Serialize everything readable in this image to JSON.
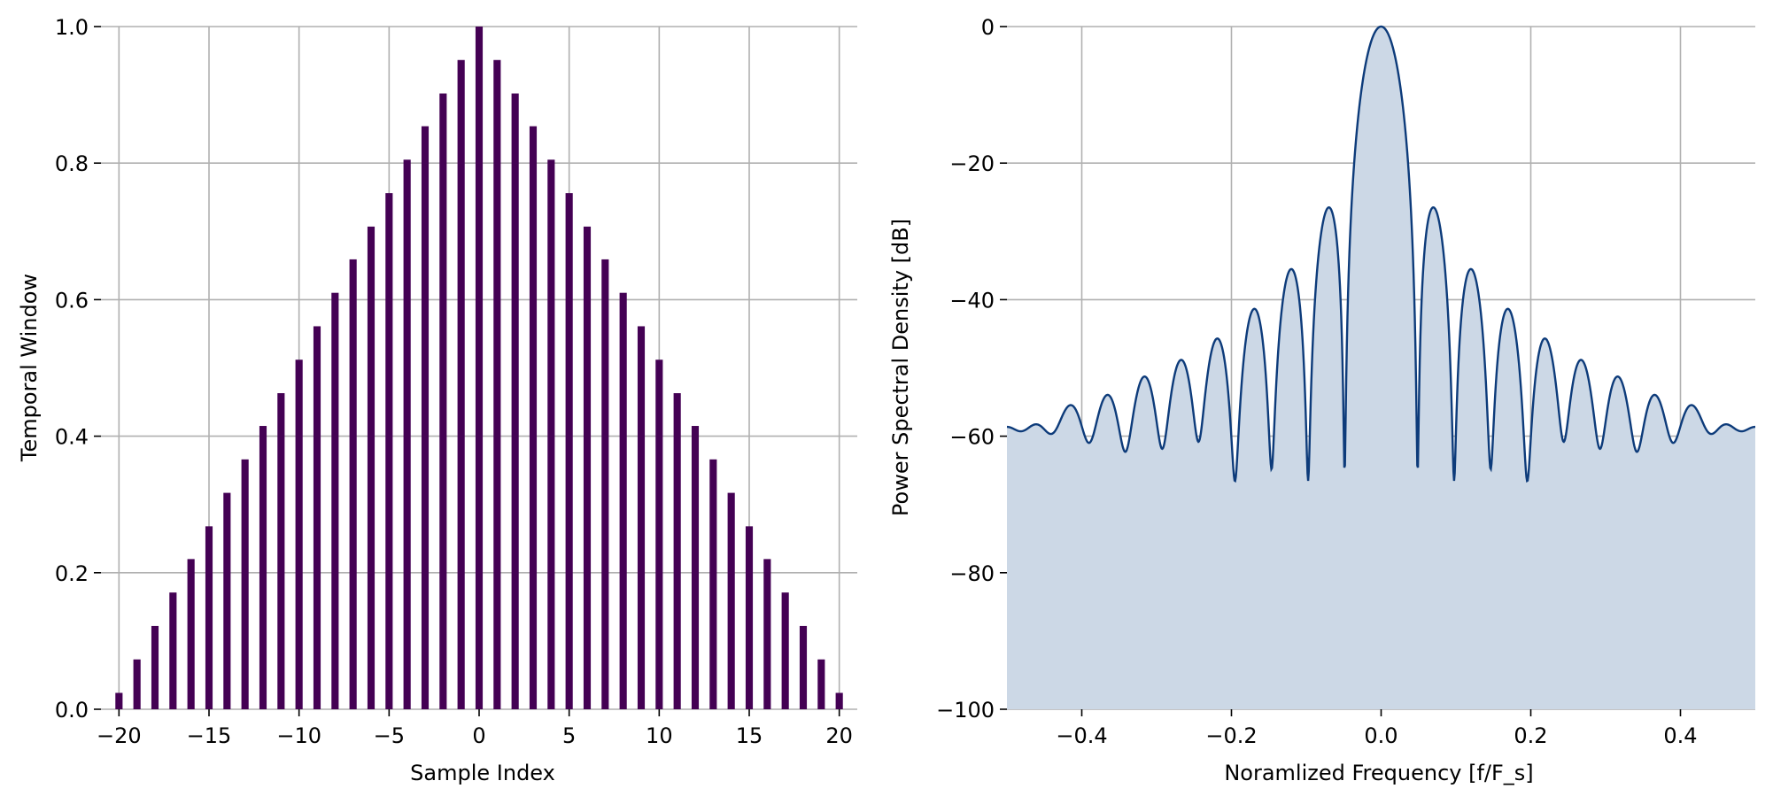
{
  "chart_data": [
    {
      "type": "bar",
      "xlabel": "Sample Index",
      "ylabel": "Temporal Window",
      "xlim": [
        -21,
        21
      ],
      "ylim": [
        0,
        1.0
      ],
      "xticks": [
        -20,
        -15,
        -10,
        -5,
        0,
        5,
        10,
        15,
        20
      ],
      "xtick_labels": [
        "−20",
        "−15",
        "−10",
        "−5",
        "0",
        "5",
        "10",
        "15",
        "20"
      ],
      "yticks": [
        0.0,
        0.2,
        0.4,
        0.6,
        0.8,
        1.0
      ],
      "ytick_labels": [
        "0.0",
        "0.2",
        "0.4",
        "0.6",
        "0.8",
        "1.0"
      ],
      "grid": true,
      "color": "#440154",
      "x": [
        -20,
        -19,
        -18,
        -17,
        -16,
        -15,
        -14,
        -13,
        -12,
        -11,
        -10,
        -9,
        -8,
        -7,
        -6,
        -5,
        -4,
        -3,
        -2,
        -1,
        0,
        1,
        2,
        3,
        4,
        5,
        6,
        7,
        8,
        9,
        10,
        11,
        12,
        13,
        14,
        15,
        16,
        17,
        18,
        19,
        20
      ],
      "values": [
        0.024,
        0.073,
        0.122,
        0.171,
        0.22,
        0.268,
        0.317,
        0.366,
        0.415,
        0.463,
        0.512,
        0.561,
        0.61,
        0.659,
        0.707,
        0.756,
        0.805,
        0.854,
        0.902,
        0.951,
        1.0,
        0.951,
        0.902,
        0.854,
        0.805,
        0.756,
        0.707,
        0.659,
        0.61,
        0.561,
        0.512,
        0.463,
        0.415,
        0.366,
        0.317,
        0.268,
        0.22,
        0.171,
        0.122,
        0.073,
        0.024
      ]
    },
    {
      "type": "area",
      "xlabel": "Noramlized Frequency [f/F_s]",
      "ylabel": "Power Spectral Density [dB]",
      "xlim": [
        -0.5,
        0.5
      ],
      "ylim": [
        -100,
        0
      ],
      "xticks": [
        -0.4,
        -0.2,
        0.0,
        0.2,
        0.4
      ],
      "xtick_labels": [
        "−0.4",
        "−0.2",
        "0.0",
        "0.2",
        "0.4"
      ],
      "yticks": [
        -100,
        -80,
        -60,
        -40,
        -20,
        0
      ],
      "ytick_labels": [
        "−100",
        "−80",
        "−60",
        "−40",
        "−20",
        "0"
      ],
      "grid": true,
      "line_color": "#0d3b7a",
      "fill_color": "#ccd8e6",
      "window": "triangular",
      "window_length": 41
    }
  ]
}
